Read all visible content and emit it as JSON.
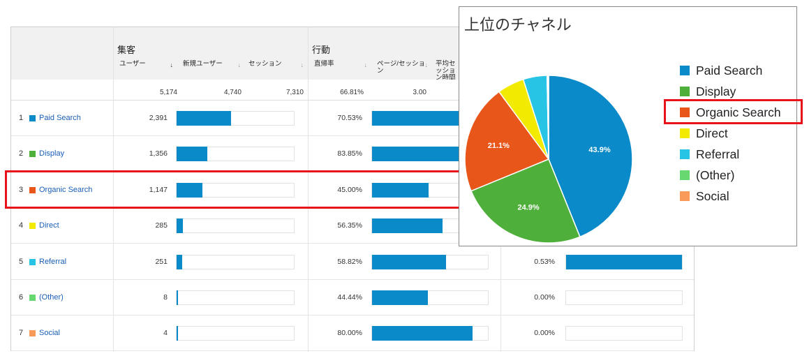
{
  "table": {
    "group_acquisition": "集客",
    "group_behavior": "行動",
    "col_users": "ユーザー",
    "col_users_sort": "↓",
    "col_new_users": "新規ユーザー",
    "col_sessions": "セッション",
    "col_bounce": "直帰率",
    "col_pages_per_session": "ページ/セッション",
    "col_avg_session": "平均セッション時間",
    "totals": {
      "users": "5,174",
      "new_users": "4,740",
      "sessions": "7,310",
      "bounce": "66.81%",
      "pages": "3.00"
    },
    "rows": [
      {
        "rank": "1",
        "channel": "Paid Search",
        "color": "#0b8ac9",
        "users": "2,391",
        "users_frac": 0.462,
        "bounce": "70.53%",
        "bounce_frac": 0.7053,
        "conv": "",
        "conv_frac": 0
      },
      {
        "rank": "2",
        "channel": "Display",
        "color": "#4eaf3a",
        "users": "1,356",
        "users_frac": 0.262,
        "bounce": "83.85%",
        "bounce_frac": 0.8385,
        "conv": "",
        "conv_frac": 0
      },
      {
        "rank": "3",
        "channel": "Organic Search",
        "color": "#e8561a",
        "users": "1,147",
        "users_frac": 0.222,
        "bounce": "45.00%",
        "bounce_frac": 0.45,
        "conv": "",
        "conv_frac": 0
      },
      {
        "rank": "4",
        "channel": "Direct",
        "color": "#f2ea00",
        "users": "285",
        "users_frac": 0.055,
        "bounce": "56.35%",
        "bounce_frac": 0.5635,
        "conv": "",
        "conv_frac": 0
      },
      {
        "rank": "5",
        "channel": "Referral",
        "color": "#27c4e6",
        "users": "251",
        "users_frac": 0.049,
        "bounce": "58.82%",
        "bounce_frac": 0.5882,
        "conv": "0.53%",
        "conv_frac": 1.0
      },
      {
        "rank": "6",
        "channel": "(Other)",
        "color": "#66d86f",
        "users": "8",
        "users_frac": 0.002,
        "bounce": "44.44%",
        "bounce_frac": 0.4444,
        "conv": "0.00%",
        "conv_frac": 0
      },
      {
        "rank": "7",
        "channel": "Social",
        "color": "#fa9a5a",
        "users": "4",
        "users_frac": 0.001,
        "bounce": "80.00%",
        "bounce_frac": 0.8,
        "conv": "0.00%",
        "conv_frac": 0
      }
    ]
  },
  "pie": {
    "title": "上位のチャネル",
    "legend": [
      "Paid Search",
      "Display",
      "Organic Search",
      "Direct",
      "Referral",
      "(Other)",
      "Social"
    ]
  },
  "chart_data": {
    "type": "pie",
    "title": "上位のチャネル",
    "legend_position": "right",
    "slices": [
      {
        "label": "Paid Search",
        "value": 43.9,
        "color": "#0b8ac9",
        "data_label": "43.9%"
      },
      {
        "label": "Display",
        "value": 24.9,
        "color": "#4eaf3a",
        "data_label": "24.9%"
      },
      {
        "label": "Organic Search",
        "value": 21.1,
        "color": "#e8561a",
        "data_label": "21.1%"
      },
      {
        "label": "Direct",
        "value": 5.2,
        "color": "#f2ea00",
        "data_label": ""
      },
      {
        "label": "Referral",
        "value": 4.6,
        "color": "#27c4e6",
        "data_label": ""
      },
      {
        "label": "(Other)",
        "value": 0.2,
        "color": "#66d86f",
        "data_label": ""
      },
      {
        "label": "Social",
        "value": 0.1,
        "color": "#fa9a5a",
        "data_label": ""
      }
    ]
  }
}
